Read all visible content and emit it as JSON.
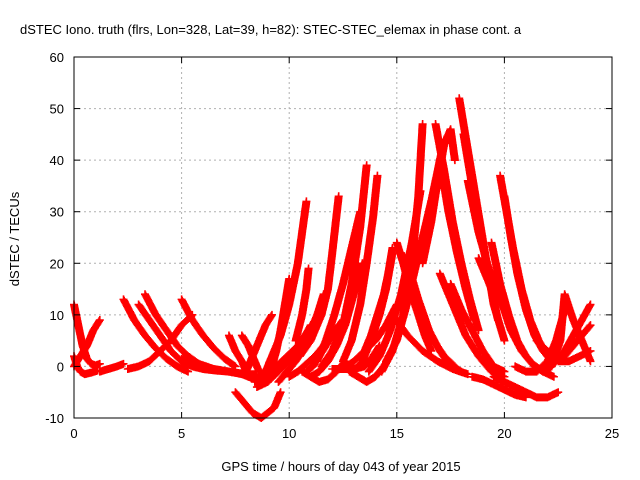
{
  "chart_data": {
    "type": "scatter",
    "title": "dSTEC Iono. truth (flrs, Lon=328, Lat=39, h=82): STEC-STEC_elemax in phase cont. a",
    "xlabel": "GPS time / hours of day 043 of year 2015",
    "ylabel": "dSTEC  / TECUs",
    "xlim": [
      0,
      25
    ],
    "ylim": [
      -10,
      60
    ],
    "xticks": [
      0,
      5,
      10,
      15,
      20,
      25
    ],
    "yticks": [
      -10,
      0,
      10,
      20,
      30,
      40,
      50,
      60
    ],
    "grid": true,
    "marker": "+",
    "color": "#ff0000",
    "series": [
      {
        "x": [
          0.0,
          0.15,
          0.3,
          0.5,
          0.8,
          1.1
        ],
        "y": [
          2,
          0,
          -1,
          -1.5,
          -1.2,
          -0.8
        ]
      },
      {
        "x": [
          0.0,
          0.2,
          0.4,
          0.6,
          0.8,
          1.0,
          1.2
        ],
        "y": [
          12,
          8,
          4,
          1.5,
          0.5,
          0.2,
          0.5
        ]
      },
      {
        "x": [
          0.0,
          0.3,
          0.6,
          0.9,
          1.2
        ],
        "y": [
          0,
          2,
          4,
          7,
          9
        ]
      },
      {
        "x": [
          1.2,
          1.6,
          2.0,
          2.3
        ],
        "y": [
          -1,
          -0.5,
          0,
          0.5
        ]
      },
      {
        "x": [
          2.3,
          2.8,
          3.3,
          3.8,
          4.3,
          4.8,
          5.3
        ],
        "y": [
          13,
          9,
          6,
          3.5,
          1.5,
          0,
          -1
        ]
      },
      {
        "x": [
          2.5,
          3.0,
          3.5,
          4.0,
          4.5,
          5.0,
          5.5
        ],
        "y": [
          -0.5,
          0,
          1,
          3,
          5,
          8,
          10
        ]
      },
      {
        "x": [
          3.3,
          3.8,
          4.3,
          4.8,
          5.3,
          5.8
        ],
        "y": [
          14,
          10,
          7,
          4,
          2,
          0.5
        ]
      },
      {
        "x": [
          3.0,
          3.5,
          4.0,
          4.5,
          5.0,
          5.5,
          6.0
        ],
        "y": [
          12,
          9,
          6,
          3,
          1,
          0,
          -0.5
        ]
      },
      {
        "x": [
          5.0,
          5.5,
          6.0,
          6.5,
          7.0,
          7.5
        ],
        "y": [
          13,
          9,
          6,
          3.5,
          1.5,
          0
        ]
      },
      {
        "x": [
          5.0,
          5.8,
          6.5,
          7.2,
          8.0,
          8.5
        ],
        "y": [
          1.5,
          0.5,
          -0.5,
          -1,
          -1.5,
          -1.5
        ]
      },
      {
        "x": [
          6.0,
          6.6,
          7.2,
          7.8,
          8.4,
          9.0
        ],
        "y": [
          -0.5,
          -0.8,
          -1,
          -1.5,
          -2.5,
          -3
        ]
      },
      {
        "x": [
          7.2,
          7.5,
          7.8,
          8.0
        ],
        "y": [
          6,
          3,
          1,
          -1
        ]
      },
      {
        "x": [
          7.8,
          8.1,
          8.4,
          8.6
        ],
        "y": [
          6,
          4,
          1,
          -1
        ]
      },
      {
        "x": [
          7.5,
          7.9,
          8.3,
          8.7,
          9.0,
          9.3,
          9.6
        ],
        "y": [
          -5,
          -7,
          -9,
          -10,
          -9,
          -8,
          -5
        ]
      },
      {
        "x": [
          8.0,
          8.3,
          8.6,
          8.9,
          9.2
        ],
        "y": [
          -1,
          2,
          5,
          8,
          10
        ]
      },
      {
        "x": [
          8.4,
          8.9,
          9.4,
          9.9,
          10.4,
          10.9
        ],
        "y": [
          -3,
          -2,
          0,
          2,
          4,
          7
        ]
      },
      {
        "x": [
          8.6,
          8.9,
          9.2,
          9.6,
          10.0,
          10.4,
          10.8
        ],
        "y": [
          -2,
          -1,
          2,
          6,
          12,
          20,
          32
        ]
      },
      {
        "x": [
          8.5,
          9.0,
          9.5,
          10.0,
          10.5,
          11.0
        ],
        "y": [
          -4,
          -3,
          -1,
          1,
          4,
          8
        ]
      },
      {
        "x": [
          9.0,
          9.2,
          9.4,
          9.6,
          9.8,
          10.0
        ],
        "y": [
          -3,
          0,
          3,
          7,
          12,
          17
        ]
      },
      {
        "x": [
          9.5,
          9.9,
          10.3,
          10.7,
          11.0,
          11.3,
          11.6
        ],
        "y": [
          -3,
          -1,
          1,
          4,
          7,
          10,
          14
        ]
      },
      {
        "x": [
          10.0,
          10.4,
          10.8,
          11.2,
          11.6,
          12.0,
          12.5
        ],
        "y": [
          -2,
          -1,
          0.5,
          2,
          4,
          6,
          9
        ]
      },
      {
        "x": [
          10.3,
          10.6,
          10.8,
          10.9
        ],
        "y": [
          5,
          10,
          15,
          19
        ]
      },
      {
        "x": [
          10.6,
          11.0,
          11.4,
          11.8,
          12.2,
          12.6
        ],
        "y": [
          -1,
          -2,
          -3,
          -2.5,
          -1,
          1
        ]
      },
      {
        "x": [
          10.8,
          11.1,
          11.4,
          11.7,
          12.0,
          12.3
        ],
        "y": [
          -1,
          0,
          2,
          4,
          6,
          8
        ]
      },
      {
        "x": [
          11.0,
          11.4,
          11.8,
          12.2,
          12.6,
          13.0,
          13.4
        ],
        "y": [
          -2,
          -1,
          1,
          4,
          8,
          14,
          20
        ]
      },
      {
        "x": [
          10.5,
          11.0,
          11.5,
          11.8,
          12.0,
          12.3
        ],
        "y": [
          2,
          5,
          10,
          15,
          22,
          33
        ]
      },
      {
        "x": [
          11.5,
          12.0,
          12.5,
          12.9,
          13.3,
          13.6
        ],
        "y": [
          0,
          3,
          8,
          16,
          27,
          39
        ]
      },
      {
        "x": [
          11.3,
          11.7,
          12.1,
          12.5,
          12.9,
          13.3
        ],
        "y": [
          1,
          5,
          10,
          16,
          23,
          30
        ]
      },
      {
        "x": [
          12.0,
          12.5,
          13.0,
          13.5,
          13.9,
          14.2
        ],
        "y": [
          -0.5,
          -0.5,
          -0.5,
          0,
          2,
          4
        ]
      },
      {
        "x": [
          12.5,
          13.0,
          13.5,
          14.0,
          14.5,
          15.0
        ],
        "y": [
          -0.5,
          1,
          3,
          5,
          8,
          12
        ]
      },
      {
        "x": [
          12.8,
          13.2,
          13.6,
          14.0,
          14.4,
          14.8
        ],
        "y": [
          -1,
          -2,
          -3,
          -2,
          0,
          3
        ]
      },
      {
        "x": [
          13.0,
          13.4,
          13.8,
          14.2,
          14.5,
          14.8
        ],
        "y": [
          -1,
          1,
          5,
          10,
          15,
          22
        ]
      },
      {
        "x": [
          13.5,
          13.8,
          14.1,
          14.4,
          14.6,
          14.8
        ],
        "y": [
          3,
          6,
          10,
          14,
          18,
          23
        ]
      },
      {
        "x": [
          12.5,
          12.9,
          13.3,
          13.6,
          13.9,
          14.1
        ],
        "y": [
          1,
          5,
          12,
          20,
          29,
          37
        ]
      },
      {
        "x": [
          13.7,
          14.2,
          14.7,
          15.2,
          15.7,
          16.1
        ],
        "y": [
          -1,
          2,
          7,
          14,
          24,
          34
        ]
      },
      {
        "x": [
          14.3,
          14.8,
          15.3,
          15.7,
          16.0,
          16.2
        ],
        "y": [
          -1,
          3,
          10,
          20,
          33,
          47
        ]
      },
      {
        "x": [
          14.5,
          15.0,
          15.4,
          15.8,
          16.2,
          16.6
        ],
        "y": [
          1,
          5,
          11,
          18,
          25,
          32
        ]
      },
      {
        "x": [
          15.0,
          15.3,
          15.6,
          16.0,
          16.3,
          16.6
        ],
        "y": [
          24,
          20,
          15,
          10,
          6,
          3
        ]
      },
      {
        "x": [
          15.2,
          15.7,
          16.2,
          16.7,
          17.2,
          17.7
        ],
        "y": [
          22,
          15,
          9,
          5,
          2,
          0
        ]
      },
      {
        "x": [
          15.5,
          16.0,
          16.5,
          17.0,
          17.5,
          18.0
        ],
        "y": [
          20,
          13,
          7,
          3,
          0,
          -1
        ]
      },
      {
        "x": [
          14.8,
          15.5,
          16.2,
          16.9,
          17.6,
          18.3
        ],
        "y": [
          10,
          6,
          3,
          1,
          -0.5,
          -1.5
        ]
      },
      {
        "x": [
          16.2,
          16.6,
          16.9,
          17.2,
          17.5,
          17.7
        ],
        "y": [
          20,
          28,
          36,
          43,
          46,
          40
        ]
      },
      {
        "x": [
          16.5,
          16.8,
          17.0,
          17.2
        ],
        "y": [
          30,
          36,
          40,
          44
        ]
      },
      {
        "x": [
          16.8,
          17.2,
          17.6,
          18.0,
          18.4,
          18.8
        ],
        "y": [
          47,
          38,
          28,
          20,
          13,
          7
        ]
      },
      {
        "x": [
          17.0,
          17.4,
          17.8,
          18.2,
          18.6
        ],
        "y": [
          40,
          30,
          22,
          15,
          9
        ]
      },
      {
        "x": [
          17.0,
          17.6,
          18.2,
          18.8,
          19.4,
          20.0
        ],
        "y": [
          18,
          12,
          6,
          2,
          -1,
          -2
        ]
      },
      {
        "x": [
          17.5,
          18.0,
          18.5,
          19.0,
          19.5,
          20.0
        ],
        "y": [
          16,
          11,
          7,
          3,
          0,
          -1
        ]
      },
      {
        "x": [
          17.9,
          18.3,
          18.7,
          19.1,
          19.5,
          20.0
        ],
        "y": [
          52,
          42,
          32,
          22,
          12,
          5
        ]
      },
      {
        "x": [
          18.1,
          18.5,
          18.9,
          19.3,
          19.7
        ],
        "y": [
          45,
          35,
          26,
          17,
          9
        ]
      },
      {
        "x": [
          18.3,
          18.8,
          19.2,
          19.6
        ],
        "y": [
          36,
          26,
          20,
          15
        ]
      },
      {
        "x": [
          18.8,
          19.1,
          19.4,
          19.6
        ],
        "y": [
          21,
          18,
          15,
          13
        ]
      },
      {
        "x": [
          19.4,
          19.8,
          20.2,
          20.6,
          21.0,
          21.4,
          21.8
        ],
        "y": [
          24,
          16,
          10,
          5,
          2,
          0,
          -1
        ]
      },
      {
        "x": [
          19.5,
          19.9,
          20.3,
          20.8,
          21.3,
          21.8,
          22.3
        ],
        "y": [
          17,
          12,
          7,
          3,
          0.5,
          -1,
          -2
        ]
      },
      {
        "x": [
          19.8,
          20.1,
          20.4,
          20.8,
          21.2,
          21.6,
          22.0
        ],
        "y": [
          37,
          30,
          23,
          15,
          9,
          5,
          2
        ]
      },
      {
        "x": [
          20.0,
          20.3,
          20.6,
          21.0,
          21.4,
          21.8,
          22.2
        ],
        "y": [
          33,
          25,
          18,
          11,
          6,
          3,
          1
        ]
      },
      {
        "x": [
          19.5,
          20.0,
          20.5,
          21.0,
          21.5,
          22.0,
          22.5
        ],
        "y": [
          -2,
          -3,
          -4,
          -5,
          -6,
          -6,
          -5
        ]
      },
      {
        "x": [
          18.5,
          19.0,
          19.5,
          20.0,
          20.5,
          21.0
        ],
        "y": [
          -2,
          -2.5,
          -3.5,
          -4.5,
          -5.5,
          -6
        ]
      },
      {
        "x": [
          20.5,
          21.0,
          21.5,
          22.0,
          22.4,
          22.8
        ],
        "y": [
          0,
          -1,
          -1,
          1,
          5,
          11
        ]
      },
      {
        "x": [
          21.5,
          22.0,
          22.4,
          22.8,
          23.2,
          23.6,
          24.0
        ],
        "y": [
          5,
          3,
          2,
          2,
          4,
          6,
          8
        ]
      },
      {
        "x": [
          22.0,
          22.4,
          22.8,
          23.2,
          23.6,
          24.0
        ],
        "y": [
          0,
          1,
          3,
          6,
          9,
          12
        ]
      },
      {
        "x": [
          21.8,
          22.2,
          22.6,
          22.8,
          23.2,
          23.6,
          24.0
        ],
        "y": [
          -1,
          0,
          5,
          14,
          9,
          5,
          1
        ]
      },
      {
        "x": [
          22.5,
          23.0,
          23.5,
          24.0
        ],
        "y": [
          1,
          1,
          2,
          3
        ]
      }
    ]
  }
}
